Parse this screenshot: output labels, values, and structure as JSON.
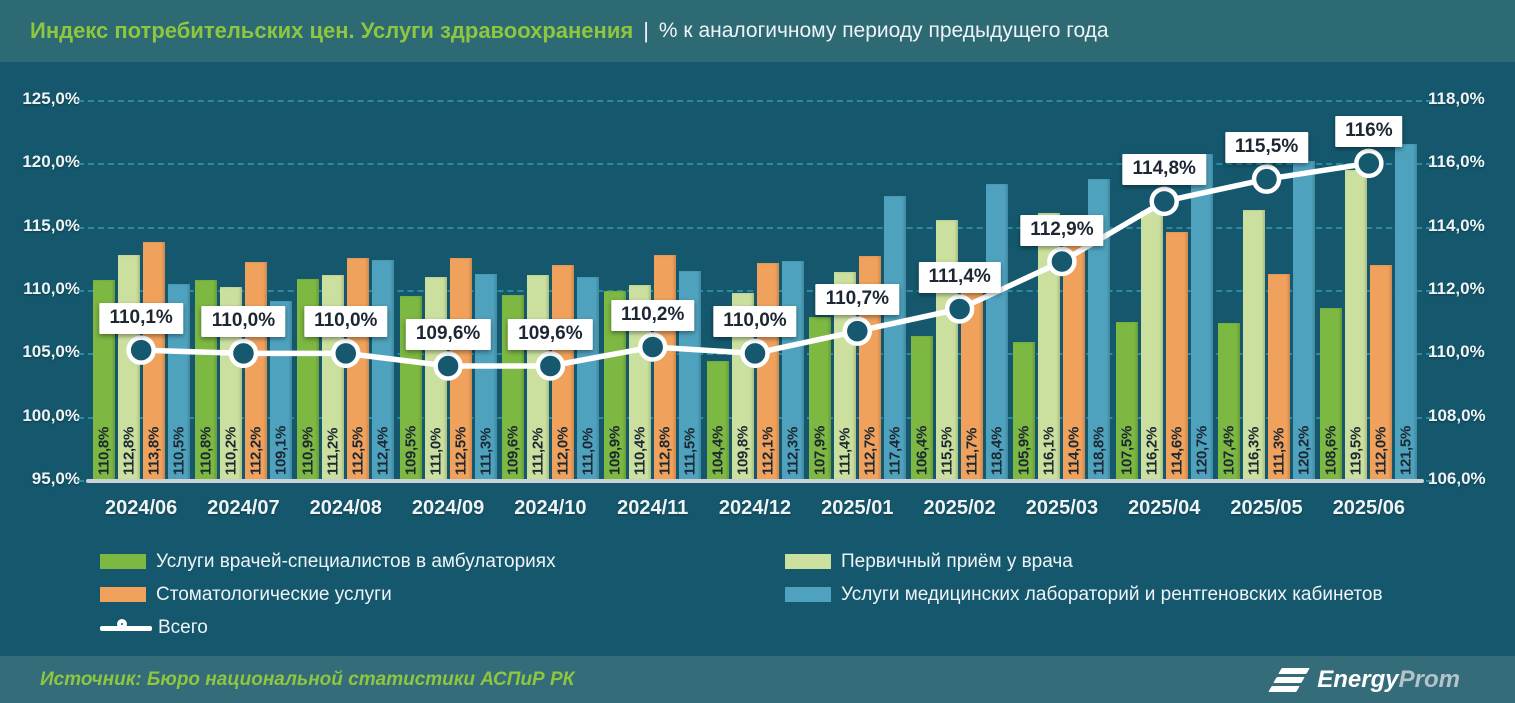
{
  "header": {
    "title": "Индекс потребительских цен. Услуги здравоохранения",
    "separator": "|",
    "subtitle": "% к аналогичному периоду предыдущего года"
  },
  "colors": {
    "background": "#15586d",
    "header_bg": "#2e6a74",
    "footer_bg": "#346c7a",
    "accent_green": "#8dc63f",
    "gridline": "#2f93a9"
  },
  "chart_data": {
    "type": "bar",
    "title": "Индекс потребительских цен. Услуги здравоохранения, % к аналогичному периоду предыдущего года",
    "grid": true,
    "legend_position": "bottom",
    "categories": [
      "2024/06",
      "2024/07",
      "2024/08",
      "2024/09",
      "2024/10",
      "2024/11",
      "2024/12",
      "2025/01",
      "2025/02",
      "2025/03",
      "2025/04",
      "2025/05",
      "2025/06"
    ],
    "left_axis": {
      "min": 95,
      "max": 125,
      "ticks": [
        "125,0%",
        "120,0%",
        "115,0%",
        "110,0%",
        "105,0%",
        "100,0%",
        "95,0%"
      ]
    },
    "right_axis": {
      "min": 106,
      "max": 118,
      "ticks": [
        "118,0%",
        "116,0%",
        "114,0%",
        "112,0%",
        "110,0%",
        "108,0%",
        "106,0%"
      ]
    },
    "series": [
      {
        "name": "Услуги врачей-специалистов в амбулаториях",
        "color": "#7db842",
        "values": [
          110.8,
          110.8,
          110.9,
          109.5,
          109.6,
          109.9,
          104.4,
          107.9,
          106.4,
          105.9,
          107.5,
          107.4,
          108.6
        ]
      },
      {
        "name": "Первичный приём у врача",
        "color": "#cbe09e",
        "values": [
          112.8,
          110.2,
          111.2,
          111.0,
          111.2,
          110.4,
          109.8,
          111.4,
          115.5,
          116.1,
          116.2,
          116.3,
          119.5
        ]
      },
      {
        "name": "Стоматологические услуги",
        "color": "#f0a15b",
        "values": [
          113.8,
          112.2,
          112.5,
          112.5,
          112.0,
          112.8,
          112.1,
          112.7,
          111.7,
          114.0,
          114.6,
          111.3,
          112.0
        ]
      },
      {
        "name": "Услуги медицинских лабораторий и рентгеновских кабинетов",
        "color": "#4fa2be",
        "values": [
          110.5,
          109.1,
          112.4,
          111.3,
          111.0,
          111.5,
          112.3,
          117.4,
          118.4,
          118.8,
          120.7,
          120.2,
          121.5
        ]
      }
    ],
    "line_series": {
      "name": "Всего",
      "color": "#ffffff",
      "marker_fill": "#16596f",
      "values": [
        110.1,
        110.0,
        110.0,
        109.6,
        109.6,
        110.2,
        110.0,
        110.7,
        111.4,
        112.9,
        114.8,
        115.5,
        116.0
      ],
      "labels": [
        "110,1%",
        "110,0%",
        "110,0%",
        "109,6%",
        "109,6%",
        "110,2%",
        "110,0%",
        "110,7%",
        "111,4%",
        "112,9%",
        "114,8%",
        "115,5%",
        "116%"
      ]
    }
  },
  "legend": {
    "columns": [
      {
        "items": [
          {
            "type": "swatch",
            "series": 0,
            "label": "Услуги врачей-специалистов в амбулаториях"
          },
          {
            "type": "swatch",
            "series": 2,
            "label": "Стоматологические услуги"
          },
          {
            "type": "line",
            "label": "Всего"
          }
        ]
      },
      {
        "items": [
          {
            "type": "swatch",
            "series": 1,
            "label": "Первичный приём у врача"
          },
          {
            "type": "swatch",
            "series": 3,
            "label": "Услуги медицинских лабораторий и рентгеновских кабинетов"
          }
        ]
      }
    ]
  },
  "footer": {
    "source": "Источник: Бюро национальной статистики АСПиР РК",
    "logo_bold": "Energy",
    "logo_light": "Prom"
  }
}
